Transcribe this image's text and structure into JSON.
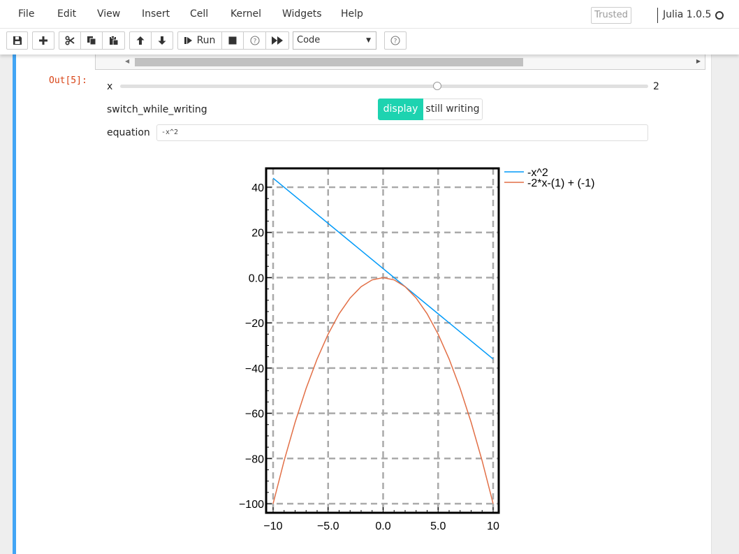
{
  "menu": {
    "items": [
      "File",
      "Edit",
      "View",
      "Insert",
      "Cell",
      "Kernel",
      "Widgets",
      "Help"
    ],
    "trusted": "Trusted",
    "kernel_name": "Julia 1.0.5"
  },
  "toolbar": {
    "run_label": "Run",
    "cell_type": "Code",
    "icons": [
      "save-icon",
      "plus-icon",
      "scissors-icon",
      "copy-icon",
      "paste-icon",
      "arrow-up-icon",
      "arrow-down-icon",
      "step-forward-icon",
      "stop-icon",
      "restart-icon",
      "fast-forward-icon",
      "keyboard-help-icon"
    ]
  },
  "cell": {
    "out_prompt": "Out[5]:"
  },
  "widgets": {
    "slider": {
      "label": "x",
      "value": 2,
      "min": -10,
      "max": 10
    },
    "toggle": {
      "label": "switch_while_writing",
      "options": [
        "display",
        "still writing"
      ],
      "selected": "display"
    },
    "equation": {
      "label": "equation",
      "value": "-x^2"
    }
  },
  "colors": {
    "accent_selected_cell": "#42a5f5",
    "toggle_active": "#1dd3b0",
    "out_prompt": "#d84315"
  },
  "chart_data": {
    "type": "line",
    "xlim": [
      -10,
      10
    ],
    "ylim": [
      -100,
      45
    ],
    "xticks": [
      -10,
      -5,
      0,
      5,
      10
    ],
    "xtick_labels": [
      "−10",
      "−5.0",
      "0.0",
      "5.0",
      "10"
    ],
    "yticks": [
      40,
      20,
      0,
      -20,
      -40,
      -60,
      -80,
      -100
    ],
    "ytick_labels": [
      "40",
      "20",
      "0.0",
      "−20",
      "−40",
      "−60",
      "−80",
      "−100"
    ],
    "grid": true,
    "legend_position": "outside-top-right",
    "series": [
      {
        "name": "-x^2",
        "color": "#009af9",
        "x": [
          -10,
          10
        ],
        "y": [
          44,
          -36
        ]
      },
      {
        "name": "-2*x-(1) + (-1)",
        "color": "#e26f46",
        "x": [
          -10,
          -9,
          -8,
          -7,
          -6,
          -5,
          -4,
          -3,
          -2,
          -1,
          0,
          1,
          2,
          3,
          4,
          5,
          6,
          7,
          8,
          9,
          10
        ],
        "y": [
          -100,
          -81,
          -64,
          -49,
          -36,
          -25,
          -16,
          -9,
          -4,
          -1,
          0,
          -1,
          -4,
          -9,
          -16,
          -25,
          -36,
          -49,
          -64,
          -81,
          -100
        ]
      }
    ]
  }
}
